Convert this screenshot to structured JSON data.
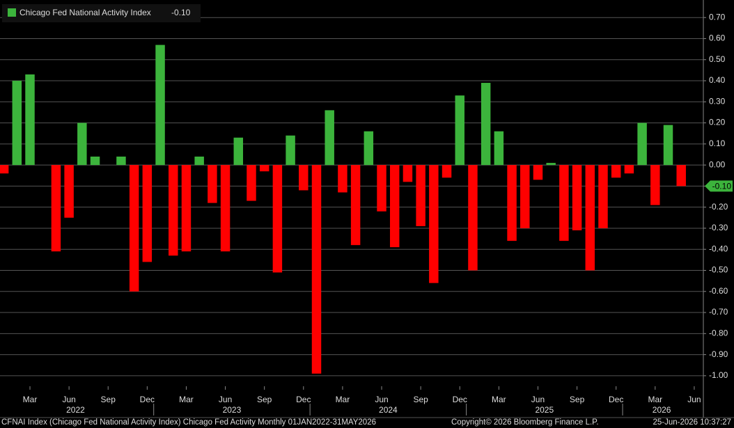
{
  "chart_data": {
    "type": "bar",
    "series": [
      {
        "name": "Chicago Fed National Activity Index",
        "positive_color": "#3cb43c",
        "negative_color": "#ff0000",
        "last_value_label": "-0.10",
        "values": [
          -0.04,
          0.4,
          0.43,
          0,
          -0.41,
          -0.25,
          0.2,
          0.04,
          0,
          0.04,
          -0.6,
          -0.46,
          0.57,
          -0.43,
          -0.41,
          0.04,
          -0.18,
          -0.41,
          0.13,
          -0.17,
          -0.03,
          -0.51,
          0.14,
          -0.12,
          -0.99,
          0.26,
          -0.13,
          -0.38,
          0.16,
          -0.22,
          -0.39,
          -0.08,
          -0.29,
          -0.56,
          -0.06,
          0.33,
          -0.5,
          0.39,
          0.16,
          -0.36,
          -0.3,
          -0.07,
          0.01,
          -0.36,
          -0.31,
          -0.5,
          -0.3,
          -0.06,
          -0.04,
          0.2,
          -0.19,
          0.19,
          -0.1
        ]
      }
    ],
    "xlim": [
      -0.3,
      53.7
    ],
    "xticks": [
      {
        "value": 2,
        "label": "Mar"
      },
      {
        "value": 5,
        "label": "Jun"
      },
      {
        "value": 8,
        "label": "Sep"
      },
      {
        "value": 11,
        "label": "Dec"
      },
      {
        "value": 14,
        "label": "Mar"
      },
      {
        "value": 17,
        "label": "Jun"
      },
      {
        "value": 20,
        "label": "Sep"
      },
      {
        "value": 23,
        "label": "Dec"
      },
      {
        "value": 26,
        "label": "Mar"
      },
      {
        "value": 29,
        "label": "Jun"
      },
      {
        "value": 32,
        "label": "Sep"
      },
      {
        "value": 35,
        "label": "Dec"
      },
      {
        "value": 38,
        "label": "Mar"
      },
      {
        "value": 41,
        "label": "Jun"
      },
      {
        "value": 44,
        "label": "Sep"
      },
      {
        "value": 47,
        "label": "Dec"
      },
      {
        "value": 50,
        "label": "Mar"
      },
      {
        "value": 53,
        "label": "Jun"
      }
    ],
    "years": [
      {
        "value": 5.5,
        "label": "2022"
      },
      {
        "value": 17.5,
        "label": "2023"
      },
      {
        "value": 29.5,
        "label": "2024"
      },
      {
        "value": 41.5,
        "label": "2025"
      },
      {
        "value": 50.5,
        "label": "2026"
      }
    ],
    "ylim": [
      -1.05,
      0.77
    ],
    "yticks": [
      {
        "value": 0.7,
        "label": "0.70"
      },
      {
        "value": 0.6,
        "label": "0.60"
      },
      {
        "value": 0.5,
        "label": "0.50"
      },
      {
        "value": 0.4,
        "label": "0.40"
      },
      {
        "value": 0.3,
        "label": "0.30"
      },
      {
        "value": 0.2,
        "label": "0.20"
      },
      {
        "value": 0.1,
        "label": "0.10"
      },
      {
        "value": 0,
        "label": "0.00"
      },
      {
        "value": -0.1,
        "label": "-0.10"
      },
      {
        "value": -0.2,
        "label": "-0.20"
      },
      {
        "value": -0.3,
        "label": "-0.30"
      },
      {
        "value": -0.4,
        "label": "-0.40"
      },
      {
        "value": -0.5,
        "label": "-0.50"
      },
      {
        "value": -0.6,
        "label": "-0.60"
      },
      {
        "value": -0.7,
        "label": "-0.70"
      },
      {
        "value": -0.8,
        "label": "-0.80"
      },
      {
        "value": -0.9,
        "label": "-0.90"
      },
      {
        "value": -1.0,
        "label": "-1.00"
      }
    ],
    "grid": true,
    "footer_left": "CFNAI Index (Chicago Fed National Activity Index) Chicago Fed Activity Monthly 01JAN2022-31MAY2026",
    "footer_center": "Copyright© 2026 Bloomberg Finance L.P.",
    "footer_right": "25-Jun-2026 10:37:27"
  }
}
